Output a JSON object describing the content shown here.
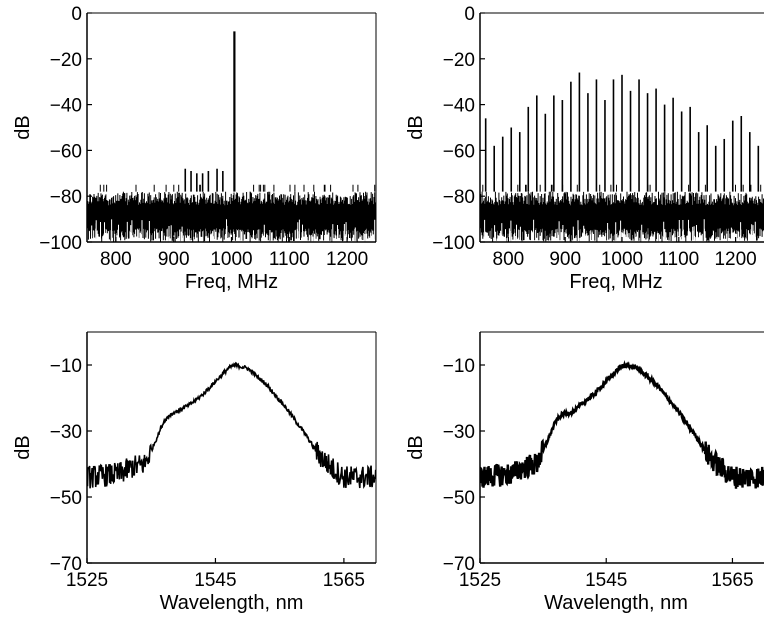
{
  "chart_data": [
    {
      "type": "line",
      "panel": "top-left",
      "xlabel": "Freq, MHz",
      "ylabel": "dB",
      "xlim": [
        750,
        1250
      ],
      "ylim": [
        -100,
        0
      ],
      "xticks": [
        800,
        900,
        1000,
        1100,
        1200
      ],
      "yticks": [
        -100,
        -80,
        -60,
        -40,
        -20,
        0
      ],
      "noise_floor_db": [
        -98,
        -78
      ],
      "series": [
        {
          "kind": "spikes",
          "x": [
            920,
            930,
            940,
            950,
            960,
            975,
            985,
            1005
          ],
          "values": [
            -68,
            -69,
            -70,
            -70,
            -69,
            -68,
            -69,
            -8
          ]
        }
      ]
    },
    {
      "type": "line",
      "panel": "top-right",
      "xlabel": "Freq, MHz",
      "ylabel": "dB",
      "xlim": [
        750,
        1250
      ],
      "ylim": [
        -100,
        0
      ],
      "xticks": [
        800,
        900,
        1000,
        1100,
        1200
      ],
      "yticks": [
        -100,
        -80,
        -60,
        -40,
        -20,
        0
      ],
      "noise_floor_db": [
        -98,
        -78
      ],
      "series": [
        {
          "kind": "spikes",
          "x": [
            760,
            775,
            790,
            805,
            820,
            835,
            850,
            865,
            880,
            895,
            910,
            925,
            940,
            955,
            970,
            985,
            1000,
            1015,
            1030,
            1045,
            1060,
            1075,
            1090,
            1105,
            1120,
            1135,
            1150,
            1165,
            1180,
            1195,
            1210,
            1225,
            1240
          ],
          "values": [
            -46,
            -58,
            -54,
            -50,
            -52,
            -41,
            -36,
            -44,
            -36,
            -38,
            -30,
            -26,
            -35,
            -29,
            -38,
            -29,
            -27,
            -34,
            -29,
            -35,
            -33,
            -40,
            -37,
            -43,
            -41,
            -52,
            -49,
            -58,
            -55,
            -47,
            -45,
            -52,
            -58
          ]
        }
      ]
    },
    {
      "type": "line",
      "panel": "bottom-left",
      "xlabel": "Wavelength, nm",
      "ylabel": "dB",
      "xlim": [
        1525,
        1570
      ],
      "ylim": [
        -70,
        0
      ],
      "xticks": [
        1525,
        1545,
        1565
      ],
      "yticks": [
        -70,
        -50,
        -30,
        -10
      ],
      "series": [
        {
          "x": [
            1525,
            1530,
            1532,
            1534,
            1535,
            1537,
            1538,
            1540,
            1541,
            1543,
            1545,
            1547,
            1548,
            1550,
            1553,
            1556,
            1559,
            1561,
            1563,
            1565,
            1570
          ],
          "values": [
            -44,
            -43,
            -41,
            -40,
            -36,
            -27,
            -25,
            -23,
            -22,
            -19,
            -15,
            -11,
            -10,
            -11,
            -16,
            -23,
            -31,
            -37,
            -41,
            -44,
            -44
          ]
        }
      ]
    },
    {
      "type": "line",
      "panel": "bottom-right",
      "xlabel": "Wavelength, nm",
      "ylabel": "dB",
      "xlim": [
        1525,
        1570
      ],
      "ylim": [
        -70,
        0
      ],
      "xticks": [
        1525,
        1545,
        1565
      ],
      "yticks": [
        -70,
        -50,
        -30,
        -10
      ],
      "series": [
        {
          "x": [
            1525,
            1530,
            1532,
            1534,
            1535,
            1537,
            1538,
            1540,
            1541,
            1543,
            1545,
            1547,
            1548,
            1550,
            1553,
            1556,
            1559,
            1561,
            1563,
            1565,
            1570
          ],
          "values": [
            -44,
            -43,
            -41,
            -40,
            -36,
            -27,
            -25,
            -24,
            -22,
            -19,
            -15,
            -11,
            -10,
            -11,
            -16,
            -23,
            -31,
            -37,
            -41,
            -44,
            -44
          ]
        }
      ]
    }
  ]
}
